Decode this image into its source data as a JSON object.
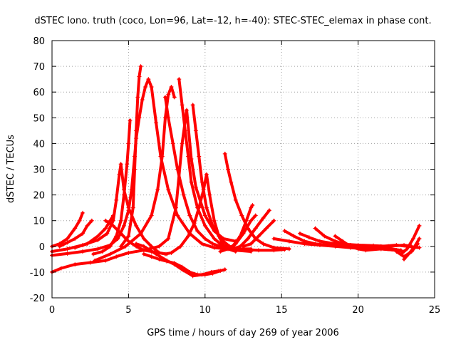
{
  "chart_data": {
    "type": "scatter",
    "title": "dSTEC Iono. truth (coco, Lon=96, Lat=-12, h=-40): STEC-STEC_elemax in phase cont.",
    "xlabel": "GPS time / hours of day 269 of year 2006",
    "ylabel": "dSTEC  / TECUs",
    "xlim": [
      0,
      25
    ],
    "ylim": [
      -20,
      80
    ],
    "xticks": [
      0,
      5,
      10,
      15,
      20,
      25
    ],
    "yticks": [
      -20,
      -10,
      0,
      10,
      20,
      30,
      40,
      50,
      60,
      70,
      80
    ],
    "grid": true,
    "marker": "+",
    "color": "#ff0000",
    "series": [
      {
        "points": [
          [
            0,
            -10
          ],
          [
            0.6,
            -8.5
          ],
          [
            1.5,
            -7
          ],
          [
            2.5,
            -6.3
          ],
          [
            3.5,
            -5.5
          ],
          [
            4.2,
            -4
          ],
          [
            5,
            -2.5
          ],
          [
            6,
            -1.5
          ],
          [
            7,
            0
          ],
          [
            7.6,
            3
          ],
          [
            8.1,
            15
          ],
          [
            8.5,
            40
          ],
          [
            8.8,
            53
          ],
          [
            9.1,
            34
          ],
          [
            9.4,
            23
          ],
          [
            10,
            12
          ],
          [
            10.6,
            6
          ],
          [
            11.2,
            3
          ],
          [
            12,
            2
          ]
        ]
      },
      {
        "points": [
          [
            0,
            -3.5
          ],
          [
            1,
            -2.8
          ],
          [
            2,
            -2
          ],
          [
            3,
            -1
          ],
          [
            3.8,
            0.5
          ],
          [
            4.3,
            3
          ],
          [
            4.7,
            8
          ],
          [
            5,
            14
          ],
          [
            5.2,
            22
          ],
          [
            5.4,
            35
          ],
          [
            5.5,
            42
          ],
          [
            5.7,
            50
          ],
          [
            5.9,
            57
          ],
          [
            6.1,
            62
          ],
          [
            6.3,
            65
          ],
          [
            6.5,
            62
          ],
          [
            6.8,
            48
          ],
          [
            7.1,
            35
          ],
          [
            7.6,
            22
          ],
          [
            8.2,
            12
          ],
          [
            9,
            5
          ],
          [
            9.8,
            1
          ],
          [
            10.6,
            -0.5
          ],
          [
            11.5,
            -1
          ],
          [
            12.5,
            -1.2
          ],
          [
            13.5,
            -1.5
          ],
          [
            14.5,
            -1.5
          ],
          [
            15.2,
            -1.2
          ]
        ]
      },
      {
        "points": [
          [
            0,
            -2
          ],
          [
            1,
            -1
          ],
          [
            2,
            0.5
          ],
          [
            3,
            2.5
          ],
          [
            3.6,
            5
          ],
          [
            4,
            10
          ],
          [
            4.2,
            18
          ],
          [
            4.4,
            28
          ],
          [
            4.5,
            32
          ],
          [
            4.7,
            22
          ],
          [
            5,
            15
          ],
          [
            5.5,
            8
          ],
          [
            6,
            3
          ],
          [
            6.5,
            0
          ],
          [
            7,
            -2.5
          ],
          [
            7.4,
            -3
          ],
          [
            7.8,
            -2.5
          ],
          [
            8.4,
            0
          ],
          [
            8.9,
            4
          ],
          [
            9.3,
            9
          ],
          [
            9.6,
            15
          ],
          [
            9.9,
            22
          ],
          [
            10.1,
            28
          ],
          [
            10.3,
            20
          ],
          [
            10.6,
            10
          ],
          [
            10.9,
            4
          ],
          [
            11.2,
            0.5
          ],
          [
            11.5,
            -0.5
          ]
        ]
      },
      {
        "points": [
          [
            0,
            0
          ],
          [
            0.5,
            1
          ],
          [
            1,
            3
          ],
          [
            1.5,
            7
          ],
          [
            1.8,
            10
          ],
          [
            2,
            13
          ]
        ]
      },
      {
        "points": [
          [
            0.5,
            0
          ],
          [
            1,
            1.5
          ],
          [
            1.5,
            3
          ],
          [
            2,
            5
          ],
          [
            2.3,
            8
          ],
          [
            2.6,
            10
          ]
        ]
      },
      {
        "points": [
          [
            1.5,
            -0.5
          ],
          [
            2.3,
            1
          ],
          [
            3,
            4
          ],
          [
            3.5,
            7
          ],
          [
            3.8,
            10
          ],
          [
            4,
            12
          ]
        ]
      },
      {
        "points": [
          [
            2.7,
            -3
          ],
          [
            3.3,
            -2
          ],
          [
            3.8,
            0
          ],
          [
            4.2,
            4
          ],
          [
            4.5,
            10
          ],
          [
            4.7,
            20
          ],
          [
            4.9,
            32
          ],
          [
            5,
            40
          ],
          [
            5.1,
            49
          ]
        ]
      },
      {
        "points": [
          [
            3.5,
            10
          ],
          [
            4,
            8
          ],
          [
            4.5,
            5
          ],
          [
            5,
            2
          ],
          [
            5.5,
            0
          ],
          [
            6,
            -1.5
          ],
          [
            6.5,
            -2
          ],
          [
            7,
            -2.5
          ],
          [
            7.5,
            -3
          ]
        ]
      },
      {
        "points": [
          [
            2.8,
            -5.5
          ],
          [
            3.8,
            -3
          ],
          [
            4.8,
            0
          ],
          [
            5.8,
            5
          ],
          [
            6.5,
            12
          ],
          [
            6.9,
            22
          ],
          [
            7.2,
            35
          ],
          [
            7.4,
            50
          ],
          [
            7.6,
            59
          ],
          [
            7.8,
            62
          ],
          [
            8,
            58
          ]
        ]
      },
      {
        "points": [
          [
            4.5,
            0
          ],
          [
            5,
            4
          ],
          [
            5.3,
            15
          ],
          [
            5.4,
            30
          ],
          [
            5.5,
            45
          ],
          [
            5.6,
            58
          ],
          [
            5.7,
            66
          ],
          [
            5.8,
            70
          ]
        ]
      },
      {
        "points": [
          [
            6,
            -3
          ],
          [
            6.5,
            -4
          ],
          [
            7,
            -5
          ],
          [
            7.5,
            -5.8
          ],
          [
            8,
            -6.5
          ],
          [
            8.5,
            -8
          ],
          [
            9,
            -10
          ],
          [
            9.5,
            -11
          ],
          [
            10,
            -11
          ],
          [
            10.5,
            -10.5
          ],
          [
            11,
            -9.5
          ],
          [
            11.3,
            -9
          ]
        ]
      },
      {
        "points": [
          [
            5.5,
            1
          ],
          [
            6,
            0
          ],
          [
            6.8,
            -3
          ],
          [
            7.5,
            -5.5
          ],
          [
            8,
            -7
          ],
          [
            8.5,
            -9
          ],
          [
            9.2,
            -11.5
          ],
          [
            9.8,
            -11
          ],
          [
            10.4,
            -10
          ],
          [
            10.9,
            -9.5
          ]
        ]
      },
      {
        "points": [
          [
            7.4,
            58
          ],
          [
            7.6,
            50
          ],
          [
            7.9,
            40
          ],
          [
            8.2,
            30
          ],
          [
            8.6,
            20
          ],
          [
            9,
            12
          ],
          [
            9.5,
            6
          ],
          [
            10,
            3
          ],
          [
            10.5,
            1
          ],
          [
            11,
            0
          ],
          [
            11.5,
            -1
          ],
          [
            12,
            -2
          ]
        ]
      },
      {
        "points": [
          [
            8.3,
            65
          ],
          [
            8.5,
            55
          ],
          [
            8.7,
            45
          ],
          [
            8.9,
            35
          ],
          [
            9.1,
            25
          ],
          [
            9.5,
            15
          ],
          [
            10,
            8
          ],
          [
            10.6,
            3
          ],
          [
            11.2,
            0
          ],
          [
            12,
            -1.5
          ],
          [
            13,
            -2
          ]
        ]
      },
      {
        "points": [
          [
            9.2,
            55
          ],
          [
            9.4,
            45
          ],
          [
            9.6,
            35
          ],
          [
            9.8,
            25
          ],
          [
            10.1,
            15
          ],
          [
            10.5,
            8
          ],
          [
            11,
            3
          ],
          [
            11.6,
            0
          ],
          [
            12.3,
            -1
          ],
          [
            13,
            -1
          ]
        ]
      },
      {
        "points": [
          [
            11.3,
            36
          ],
          [
            11.5,
            30
          ],
          [
            11.7,
            25
          ],
          [
            12,
            18
          ],
          [
            12.4,
            12
          ],
          [
            12.8,
            7
          ],
          [
            13.3,
            3
          ],
          [
            13.8,
            1
          ],
          [
            14.5,
            -0.5
          ],
          [
            15.5,
            -1
          ]
        ]
      },
      {
        "points": [
          [
            11,
            -2
          ],
          [
            11.5,
            -1
          ],
          [
            12,
            1
          ],
          [
            12.5,
            5
          ],
          [
            13,
            10
          ],
          [
            13.3,
            12
          ]
        ]
      },
      {
        "points": [
          [
            11.2,
            -1
          ],
          [
            11.8,
            0
          ],
          [
            12.3,
            4
          ],
          [
            12.7,
            10
          ],
          [
            13,
            15
          ],
          [
            13.1,
            16
          ]
        ]
      },
      {
        "points": [
          [
            11.8,
            -1
          ],
          [
            12.3,
            0
          ],
          [
            12.8,
            3
          ],
          [
            13.3,
            7
          ],
          [
            13.8,
            11
          ],
          [
            14.2,
            14
          ]
        ]
      },
      {
        "points": [
          [
            12.5,
            0
          ],
          [
            13,
            1
          ],
          [
            13.5,
            4
          ],
          [
            14,
            7
          ],
          [
            14.5,
            10
          ]
        ]
      },
      {
        "points": [
          [
            15.2,
            6
          ],
          [
            15.8,
            4
          ],
          [
            16.5,
            2
          ],
          [
            17.2,
            1
          ],
          [
            18,
            0.5
          ],
          [
            19,
            0.3
          ],
          [
            20,
            0
          ],
          [
            21,
            -0.3
          ],
          [
            22,
            -0.8
          ],
          [
            22.8,
            -1.5
          ]
        ]
      },
      {
        "points": [
          [
            16.2,
            5
          ],
          [
            16.8,
            3.5
          ],
          [
            17.5,
            2
          ],
          [
            18.5,
            1
          ],
          [
            19.5,
            0.5
          ],
          [
            20.5,
            0
          ],
          [
            21.5,
            -0.5
          ]
        ]
      },
      {
        "points": [
          [
            17.2,
            7
          ],
          [
            17.8,
            4
          ],
          [
            18.5,
            2
          ],
          [
            19.2,
            0.8
          ],
          [
            20,
            0.5
          ],
          [
            21,
            0.3
          ],
          [
            22,
            0
          ],
          [
            23,
            0.5
          ],
          [
            23.5,
            0
          ]
        ]
      },
      {
        "points": [
          [
            14.5,
            3
          ],
          [
            15.5,
            2
          ],
          [
            16.5,
            1
          ],
          [
            17.5,
            0.5
          ],
          [
            18.5,
            0
          ],
          [
            19.5,
            -0.5
          ],
          [
            20.5,
            -1
          ],
          [
            21.5,
            -1
          ],
          [
            22.5,
            -1.5
          ],
          [
            23,
            -2
          ]
        ]
      },
      {
        "points": [
          [
            18.5,
            4
          ],
          [
            19,
            2
          ],
          [
            19.5,
            0
          ],
          [
            20,
            -1
          ],
          [
            20.5,
            -1.5
          ],
          [
            21.5,
            -1
          ],
          [
            22.5,
            -1.5
          ]
        ]
      },
      {
        "points": [
          [
            22.5,
            -2
          ],
          [
            23,
            -4
          ],
          [
            23.5,
            -2
          ],
          [
            23.9,
            1
          ]
        ]
      },
      {
        "points": [
          [
            22.8,
            -3
          ],
          [
            23.2,
            -1
          ],
          [
            23.6,
            3
          ],
          [
            24,
            8
          ]
        ]
      },
      {
        "points": [
          [
            23,
            -5
          ],
          [
            23.3,
            -3
          ],
          [
            23.7,
            0
          ],
          [
            24,
            3
          ]
        ]
      },
      {
        "points": [
          [
            21.5,
            0
          ],
          [
            22.5,
            0.5
          ],
          [
            23.2,
            0
          ],
          [
            24,
            -0.5
          ]
        ]
      }
    ]
  }
}
